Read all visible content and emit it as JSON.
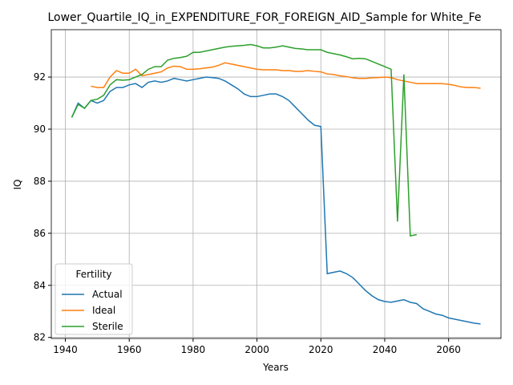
{
  "chart_data": {
    "type": "line",
    "title": "Lower_Quartile_IQ_in_EXPENDITURE_FOR_FOREIGN_AID_Sample for White_Fe",
    "xlabel": "Years",
    "ylabel": "IQ",
    "x": [
      1942,
      1944,
      1946,
      1948,
      1950,
      1952,
      1954,
      1956,
      1958,
      1960,
      1962,
      1964,
      1966,
      1968,
      1970,
      1972,
      1974,
      1976,
      1978,
      1980,
      1982,
      1984,
      1986,
      1988,
      1990,
      1992,
      1994,
      1996,
      1998,
      2000,
      2002,
      2004,
      2006,
      2008,
      2010,
      2012,
      2014,
      2016,
      2018,
      2020,
      2022,
      2024,
      2026,
      2028,
      2030,
      2032,
      2034,
      2036,
      2038,
      2040,
      2042,
      2044,
      2046,
      2048,
      2050,
      2052,
      2054,
      2056,
      2058,
      2060,
      2062,
      2064,
      2066,
      2068,
      2070
    ],
    "series": [
      {
        "name": "Actual",
        "color": "#1f77b4",
        "values": [
          90.45,
          91.0,
          90.8,
          91.1,
          91.0,
          91.1,
          91.45,
          91.6,
          91.6,
          91.7,
          91.75,
          91.6,
          91.8,
          91.85,
          91.8,
          91.85,
          91.95,
          91.9,
          91.85,
          91.9,
          91.95,
          92.0,
          91.98,
          91.95,
          91.85,
          91.7,
          91.55,
          91.35,
          91.25,
          91.25,
          91.3,
          91.35,
          91.35,
          91.25,
          91.1,
          90.85,
          90.6,
          90.35,
          90.15,
          90.1,
          84.45,
          84.5,
          84.55,
          84.45,
          84.3,
          84.05,
          83.8,
          83.6,
          83.45,
          83.38,
          83.35,
          83.4,
          83.45,
          83.35,
          83.3,
          83.1,
          83.0,
          82.9,
          82.85,
          82.75,
          82.7,
          82.65,
          82.6,
          82.55,
          82.52
        ]
      },
      {
        "name": "Ideal",
        "color": "#ff7f0e",
        "values": [
          null,
          null,
          null,
          91.65,
          91.6,
          91.6,
          92.0,
          92.25,
          92.15,
          92.15,
          92.3,
          92.05,
          92.1,
          92.15,
          92.2,
          92.35,
          92.42,
          92.4,
          92.3,
          92.3,
          92.32,
          92.35,
          92.38,
          92.45,
          92.55,
          92.5,
          92.45,
          92.4,
          92.35,
          92.3,
          92.28,
          92.28,
          92.28,
          92.25,
          92.25,
          92.22,
          92.22,
          92.25,
          92.22,
          92.2,
          92.12,
          92.1,
          92.05,
          92.02,
          91.97,
          91.95,
          91.95,
          91.97,
          91.98,
          92.0,
          91.98,
          91.9,
          91.85,
          91.8,
          91.75,
          91.75,
          91.75,
          91.75,
          91.75,
          91.72,
          91.68,
          91.62,
          91.6,
          91.6,
          91.57
        ]
      },
      {
        "name": "Sterile",
        "color": "#2ca02c",
        "values": [
          90.45,
          90.95,
          90.8,
          91.1,
          91.15,
          91.3,
          91.7,
          91.9,
          91.88,
          91.9,
          92.0,
          92.1,
          92.3,
          92.4,
          92.4,
          92.65,
          92.72,
          92.75,
          92.8,
          92.95,
          92.95,
          93.0,
          93.05,
          93.1,
          93.15,
          93.18,
          93.2,
          93.22,
          93.25,
          93.2,
          93.12,
          93.12,
          93.15,
          93.2,
          93.15,
          93.1,
          93.08,
          93.05,
          93.05,
          93.05,
          92.95,
          92.9,
          92.85,
          92.78,
          92.7,
          92.72,
          92.7,
          92.6,
          92.5,
          92.4,
          92.3,
          86.45,
          92.1,
          85.9,
          85.95,
          null,
          null,
          null,
          null,
          null,
          null,
          null,
          null,
          null,
          null
        ]
      }
    ],
    "xlim": [
      1935.6,
      2076.4
    ],
    "xticks": [
      1940,
      1960,
      1980,
      2000,
      2020,
      2040,
      2060
    ],
    "ylim": [
      81.96,
      93.82
    ],
    "yticks": [
      82,
      84,
      86,
      88,
      90,
      92
    ],
    "grid": true,
    "legend_title": "Fertility",
    "legend_loc": "lower left"
  }
}
